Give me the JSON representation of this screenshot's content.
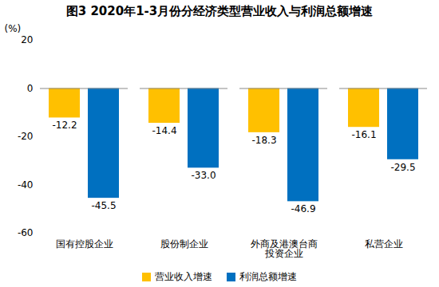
{
  "chart_data": {
    "type": "bar",
    "title": "图3 2020年1-3月份分经济类型营业收入与利润总额增速",
    "ylabel": "(%)",
    "categories": [
      "国有控股企业",
      "股份制企业",
      "外商及港澳台商\n投资企业",
      "私营企业"
    ],
    "series": [
      {
        "name": "营业收入增速",
        "color": "#FFC000",
        "values": [
          -12.2,
          -14.4,
          -18.3,
          -16.1
        ],
        "value_labels": [
          "-12.2",
          "-14.4",
          "-18.3",
          "-16.1"
        ]
      },
      {
        "name": "利润总额增速",
        "color": "#0070C0",
        "values": [
          -45.5,
          -33.0,
          -46.9,
          -29.5
        ],
        "value_labels": [
          "-45.5",
          "-33.0",
          "-46.9",
          "-29.5"
        ]
      }
    ],
    "ylim": [
      -60,
      20
    ],
    "yticks": [
      -60,
      -40,
      -20,
      0,
      20
    ],
    "grid": false,
    "legend": "bottom",
    "data_labels": true
  }
}
